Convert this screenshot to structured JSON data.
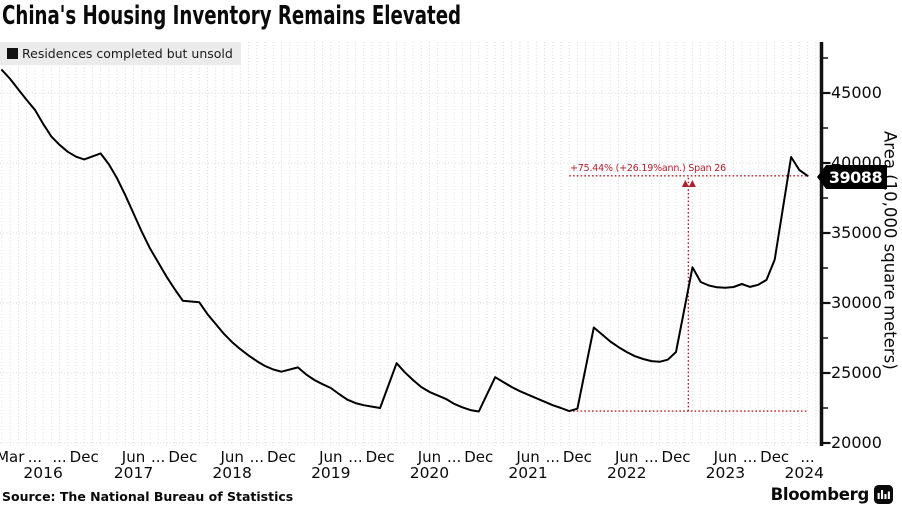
{
  "header": {
    "title": "China's Housing Inventory Remains Elevated"
  },
  "legend": {
    "label": "Residences completed but unsold",
    "swatch_color": "#111111"
  },
  "annotation": {
    "text": "+75.44% (+26.19%ann.) Span 26",
    "color": "#b01f2e"
  },
  "y_axis": {
    "title": "Area (10,000 square meters)"
  },
  "source": {
    "text": "Source: The National Bureau of Statistics"
  },
  "brand": {
    "name": "Bloomberg",
    "logo": "bar-chart-mark"
  },
  "colors": {
    "line": "#000000",
    "grid": "#d9d9d9",
    "axis": "#111111",
    "measure_red": "#b01f2e",
    "legend_bg": "#ebebeb",
    "tag_bg": "#000000",
    "tag_text": "#ffffff"
  },
  "chart_data": {
    "type": "line",
    "title": "China's Housing Inventory Remains Elevated",
    "series_name": "Residences completed but unsold",
    "x_unit": "months since Feb 2016",
    "x_range_note": "Feb 2016 to Apr 2024, monthly (no January data points)",
    "ylabel": "Area (10,000 square meters)",
    "ylim": [
      20000,
      47500
    ],
    "y_ticks": [
      20000,
      25000,
      30000,
      35000,
      40000,
      45000
    ],
    "y_minor_ticks": [
      22500,
      27500,
      32500,
      37500,
      42500,
      47500
    ],
    "grid": "dotted vertical monthly lines, dotted horizontal lines at major y ticks",
    "legend_position": "top-left",
    "last_value_label": "39088",
    "points": [
      [
        0,
        46635
      ],
      [
        1,
        46000
      ],
      [
        2,
        45250
      ],
      [
        3,
        44500
      ],
      [
        4,
        43800
      ],
      [
        5,
        42800
      ],
      [
        6,
        41900
      ],
      [
        7,
        41300
      ],
      [
        8,
        40800
      ],
      [
        9,
        40450
      ],
      [
        10,
        40257
      ],
      [
        12,
        40686
      ],
      [
        13,
        39900
      ],
      [
        14,
        38900
      ],
      [
        15,
        37700
      ],
      [
        16,
        36400
      ],
      [
        17,
        35100
      ],
      [
        18,
        33900
      ],
      [
        19,
        32900
      ],
      [
        20,
        31900
      ],
      [
        21,
        31000
      ],
      [
        22,
        30163
      ],
      [
        24,
        30050
      ],
      [
        25,
        29200
      ],
      [
        26,
        28500
      ],
      [
        27,
        27800
      ],
      [
        28,
        27200
      ],
      [
        29,
        26700
      ],
      [
        30,
        26250
      ],
      [
        31,
        25850
      ],
      [
        32,
        25500
      ],
      [
        33,
        25250
      ],
      [
        34,
        25091
      ],
      [
        36,
        25400
      ],
      [
        37,
        24900
      ],
      [
        38,
        24500
      ],
      [
        39,
        24200
      ],
      [
        40,
        23930
      ],
      [
        41,
        23500
      ],
      [
        42,
        23100
      ],
      [
        43,
        22850
      ],
      [
        44,
        22700
      ],
      [
        45,
        22600
      ],
      [
        46,
        22500
      ],
      [
        48,
        25700
      ],
      [
        49,
        25050
      ],
      [
        50,
        24500
      ],
      [
        51,
        24000
      ],
      [
        52,
        23650
      ],
      [
        53,
        23400
      ],
      [
        54,
        23150
      ],
      [
        55,
        22800
      ],
      [
        56,
        22550
      ],
      [
        57,
        22350
      ],
      [
        58,
        22250
      ],
      [
        60,
        24700
      ],
      [
        61,
        24350
      ],
      [
        62,
        24000
      ],
      [
        63,
        23700
      ],
      [
        64,
        23450
      ],
      [
        65,
        23200
      ],
      [
        66,
        22950
      ],
      [
        67,
        22700
      ],
      [
        68,
        22500
      ],
      [
        69,
        22280
      ],
      [
        70,
        22450
      ],
      [
        72,
        28250
      ],
      [
        73,
        27750
      ],
      [
        74,
        27250
      ],
      [
        75,
        26850
      ],
      [
        76,
        26500
      ],
      [
        77,
        26200
      ],
      [
        78,
        26000
      ],
      [
        79,
        25850
      ],
      [
        80,
        25800
      ],
      [
        81,
        25950
      ],
      [
        82,
        26500
      ],
      [
        84,
        32550
      ],
      [
        85,
        31500
      ],
      [
        86,
        31250
      ],
      [
        87,
        31120
      ],
      [
        88,
        31090
      ],
      [
        89,
        31140
      ],
      [
        90,
        31360
      ],
      [
        91,
        31150
      ],
      [
        92,
        31300
      ],
      [
        93,
        31650
      ],
      [
        94,
        33100
      ],
      [
        96,
        40430
      ],
      [
        97,
        39500
      ],
      [
        98,
        39088
      ]
    ],
    "measure": {
      "label": "+75.44% (+26.19%ann.) Span 26",
      "from_month": 69,
      "from_value": 22280,
      "to_month": 98,
      "to_value": 39088,
      "vline_month": 83.5
    },
    "x_month_ticks": [
      {
        "m": 1,
        "label": "Mar"
      },
      {
        "m": 4,
        "label": "..."
      },
      {
        "m": 7,
        "label": "..."
      },
      {
        "m": 10,
        "label": "Dec"
      },
      {
        "m": 16,
        "label": "Jun"
      },
      {
        "m": 19,
        "label": "..."
      },
      {
        "m": 22,
        "label": "Dec"
      },
      {
        "m": 28,
        "label": "Jun"
      },
      {
        "m": 31,
        "label": "..."
      },
      {
        "m": 34,
        "label": "Dec"
      },
      {
        "m": 40,
        "label": "Jun"
      },
      {
        "m": 43,
        "label": "..."
      },
      {
        "m": 46,
        "label": "Dec"
      },
      {
        "m": 52,
        "label": "Jun"
      },
      {
        "m": 55,
        "label": "..."
      },
      {
        "m": 58,
        "label": "Dec"
      },
      {
        "m": 64,
        "label": "Jun"
      },
      {
        "m": 67,
        "label": "..."
      },
      {
        "m": 70,
        "label": "Dec"
      },
      {
        "m": 76,
        "label": "Jun"
      },
      {
        "m": 79,
        "label": "..."
      },
      {
        "m": 82,
        "label": "Dec"
      },
      {
        "m": 88,
        "label": "Jun"
      },
      {
        "m": 91,
        "label": "..."
      },
      {
        "m": 94,
        "label": "Dec"
      },
      {
        "m": 98,
        "label": "..."
      }
    ],
    "x_year_ticks": [
      {
        "m": 5,
        "label": "2016"
      },
      {
        "m": 16,
        "label": "2017"
      },
      {
        "m": 28,
        "label": "2018"
      },
      {
        "m": 40,
        "label": "2019"
      },
      {
        "m": 52,
        "label": "2020"
      },
      {
        "m": 64,
        "label": "2021"
      },
      {
        "m": 76,
        "label": "2022"
      },
      {
        "m": 88,
        "label": "2023"
      },
      {
        "m": 97.6,
        "label": "2024"
      }
    ]
  }
}
